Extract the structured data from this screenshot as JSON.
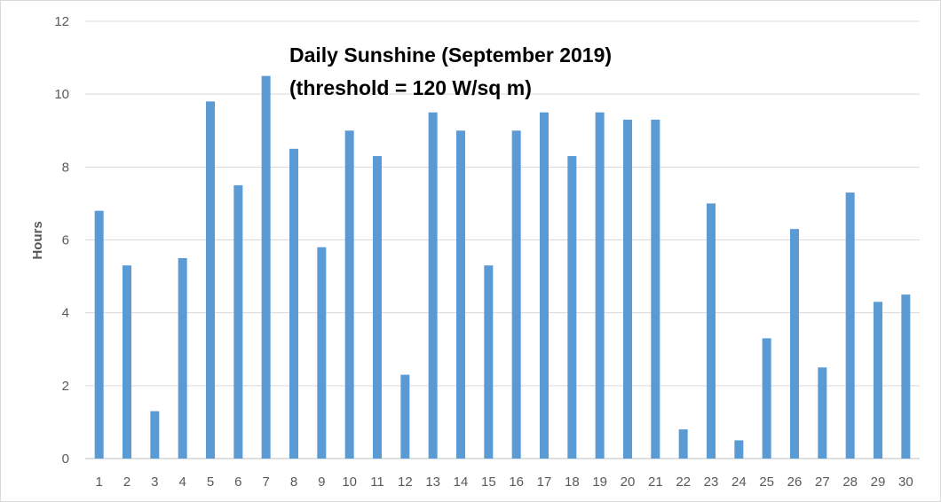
{
  "chart_data": {
    "type": "bar",
    "title": "Daily Sunshine (September 2019)",
    "subtitle": "(threshold = 120 W/sq m)",
    "xlabel": "",
    "ylabel": "Hours",
    "ylim": [
      0,
      12
    ],
    "yticks": [
      "0",
      "2",
      "4",
      "6",
      "8",
      "10",
      "12"
    ],
    "grid": true,
    "legend": "none",
    "bar_color": "#5b9bd5",
    "categories": [
      "1",
      "2",
      "3",
      "4",
      "5",
      "6",
      "7",
      "8",
      "9",
      "10",
      "11",
      "12",
      "13",
      "14",
      "15",
      "16",
      "17",
      "18",
      "19",
      "20",
      "21",
      "22",
      "23",
      "24",
      "25",
      "26",
      "27",
      "28",
      "29",
      "30"
    ],
    "values": [
      6.8,
      5.3,
      1.3,
      5.5,
      9.8,
      7.5,
      10.5,
      8.5,
      5.8,
      9.0,
      8.3,
      2.3,
      9.5,
      9.0,
      5.3,
      9.0,
      9.5,
      8.3,
      9.5,
      9.3,
      9.3,
      0.8,
      7.0,
      0.5,
      3.3,
      6.3,
      2.5,
      7.3,
      4.3,
      4.5
    ]
  }
}
